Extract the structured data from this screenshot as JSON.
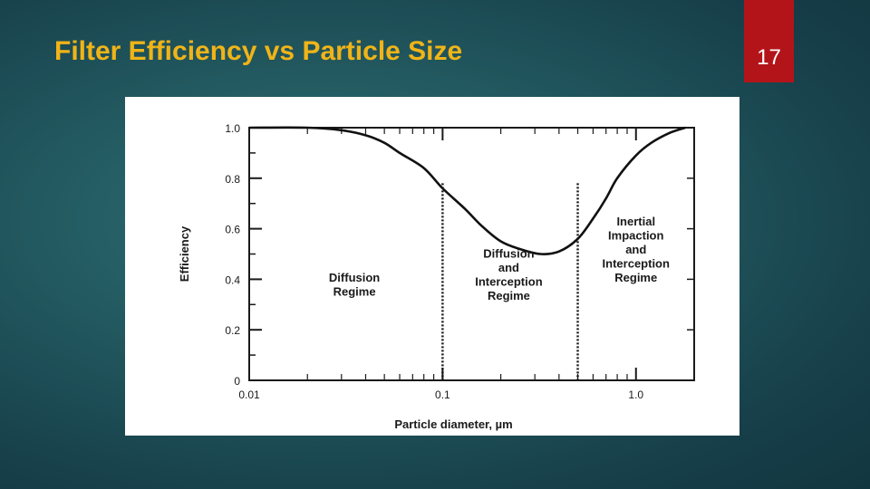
{
  "slide": {
    "title": "Filter Efficiency vs Particle Size",
    "number": "17",
    "colors": {
      "title": "#f0b418",
      "number_box": "#b3141a",
      "background": "#1d4f58"
    }
  },
  "chart_data": {
    "type": "line",
    "title": "",
    "xlabel": "Particle diameter, µm",
    "ylabel": "Efficiency",
    "x_scale": "log",
    "xlim": [
      0.01,
      2.0
    ],
    "ylim": [
      0,
      1.0
    ],
    "x_ticks": [
      {
        "value": 0.01,
        "label": "0.01"
      },
      {
        "value": 0.1,
        "label": "0.1"
      },
      {
        "value": 1.0,
        "label": "1.0"
      }
    ],
    "y_ticks": [
      {
        "value": 0,
        "label": "0"
      },
      {
        "value": 0.2,
        "label": "0.2"
      },
      {
        "value": 0.4,
        "label": "0.4"
      },
      {
        "value": 0.6,
        "label": "0.6"
      },
      {
        "value": 0.8,
        "label": "0.8"
      },
      {
        "value": 1.0,
        "label": "1.0"
      }
    ],
    "series": [
      {
        "points": [
          {
            "x": 0.01,
            "y": 1.0
          },
          {
            "x": 0.02,
            "y": 1.0
          },
          {
            "x": 0.03,
            "y": 0.99
          },
          {
            "x": 0.04,
            "y": 0.97
          },
          {
            "x": 0.05,
            "y": 0.94
          },
          {
            "x": 0.06,
            "y": 0.9
          },
          {
            "x": 0.08,
            "y": 0.84
          },
          {
            "x": 0.1,
            "y": 0.76
          },
          {
            "x": 0.13,
            "y": 0.68
          },
          {
            "x": 0.16,
            "y": 0.61
          },
          {
            "x": 0.2,
            "y": 0.55
          },
          {
            "x": 0.25,
            "y": 0.52
          },
          {
            "x": 0.32,
            "y": 0.5
          },
          {
            "x": 0.4,
            "y": 0.51
          },
          {
            "x": 0.5,
            "y": 0.56
          },
          {
            "x": 0.6,
            "y": 0.64
          },
          {
            "x": 0.7,
            "y": 0.72
          },
          {
            "x": 0.8,
            "y": 0.8
          },
          {
            "x": 1.0,
            "y": 0.89
          },
          {
            "x": 1.2,
            "y": 0.94
          },
          {
            "x": 1.5,
            "y": 0.98
          },
          {
            "x": 1.8,
            "y": 1.0
          }
        ]
      }
    ],
    "boundaries": [
      0.1,
      0.5
    ],
    "regions": [
      {
        "x": 0.035,
        "y": 0.38,
        "lines": [
          "Diffusion",
          "Regime"
        ]
      },
      {
        "x": 0.22,
        "y": 0.42,
        "lines": [
          "Diffusion",
          "and",
          "Interception",
          "Regime"
        ]
      },
      {
        "x": 1.0,
        "y": 0.52,
        "lines": [
          "Inertial",
          "Impaction",
          "and",
          "Interception",
          "Regime"
        ]
      }
    ]
  }
}
